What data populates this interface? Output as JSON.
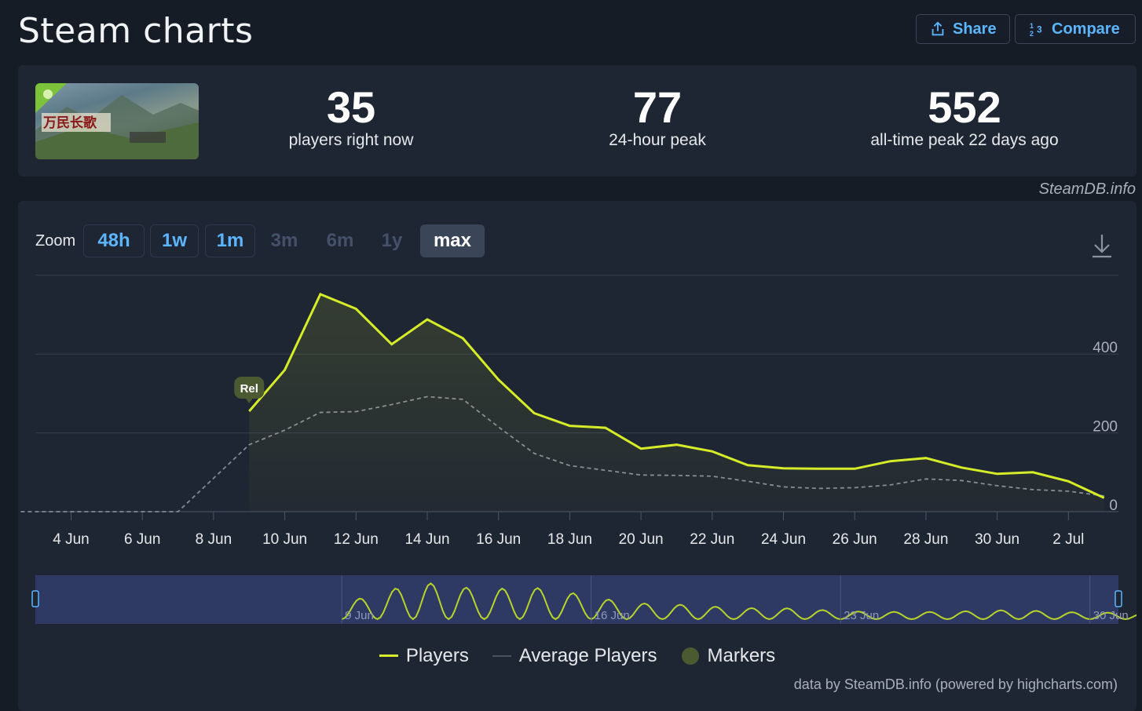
{
  "header": {
    "title": "Steam charts",
    "share_label": "Share",
    "compare_label": "Compare"
  },
  "stats": [
    {
      "value": "35",
      "label": "players right now"
    },
    {
      "value": "77",
      "label": "24-hour peak"
    },
    {
      "value": "552",
      "label": "all-time peak 22 days ago"
    }
  ],
  "thumbnail": {
    "caption": "万民长歌：三国"
  },
  "credit": "SteamDB.info",
  "zoom": {
    "label": "Zoom",
    "buttons": [
      "48h",
      "1w",
      "1m",
      "3m",
      "6m",
      "1y",
      "max"
    ],
    "active": "max",
    "disabled": [
      "3m",
      "6m",
      "1y"
    ]
  },
  "colors": {
    "players": "#d6ec28",
    "average": "#848a94",
    "accent": "#5cb5ff",
    "marker": "#4c5a32"
  },
  "legend": {
    "players": "Players",
    "average": "Average Players",
    "markers": "Markers"
  },
  "footer": "data by SteamDB.info (powered by highcharts.com)",
  "chart_data": {
    "type": "line",
    "x_tick_labels": [
      "4 Jun",
      "6 Jun",
      "8 Jun",
      "10 Jun",
      "12 Jun",
      "14 Jun",
      "16 Jun",
      "18 Jun",
      "20 Jun",
      "22 Jun",
      "24 Jun",
      "26 Jun",
      "28 Jun",
      "30 Jun",
      "2 Jul"
    ],
    "y_tick_labels": [
      "0",
      "200",
      "400"
    ],
    "ylim": [
      0,
      600
    ],
    "grid": true,
    "legend_position": "bottom",
    "marker": {
      "label": "Rel",
      "x": "2025-06-09"
    },
    "series": [
      {
        "name": "Players",
        "points": [
          [
            "2025-06-09",
            255
          ],
          [
            "2025-06-10",
            360
          ],
          [
            "2025-06-11",
            552
          ],
          [
            "2025-06-12",
            515
          ],
          [
            "2025-06-13",
            425
          ],
          [
            "2025-06-14",
            488
          ],
          [
            "2025-06-15",
            440
          ],
          [
            "2025-06-16",
            335
          ],
          [
            "2025-06-17",
            250
          ],
          [
            "2025-06-18",
            218
          ],
          [
            "2025-06-19",
            213
          ],
          [
            "2025-06-20",
            160
          ],
          [
            "2025-06-21",
            170
          ],
          [
            "2025-06-22",
            153
          ],
          [
            "2025-06-23",
            118
          ],
          [
            "2025-06-24",
            110
          ],
          [
            "2025-06-25",
            109
          ],
          [
            "2025-06-26",
            109
          ],
          [
            "2025-06-27",
            128
          ],
          [
            "2025-06-28",
            136
          ],
          [
            "2025-06-29",
            112
          ],
          [
            "2025-06-30",
            96
          ],
          [
            "2025-07-01",
            100
          ],
          [
            "2025-07-02",
            77
          ],
          [
            "2025-07-03",
            35
          ]
        ]
      },
      {
        "name": "Average Players",
        "points": [
          [
            "2025-06-01",
            0
          ],
          [
            "2025-06-07",
            0
          ],
          [
            "2025-06-09",
            170
          ],
          [
            "2025-06-10",
            207
          ],
          [
            "2025-06-11",
            252
          ],
          [
            "2025-06-12",
            254
          ],
          [
            "2025-06-13",
            272
          ],
          [
            "2025-06-14",
            292
          ],
          [
            "2025-06-15",
            285
          ],
          [
            "2025-06-16",
            215
          ],
          [
            "2025-06-17",
            148
          ],
          [
            "2025-06-18",
            117
          ],
          [
            "2025-06-19",
            105
          ],
          [
            "2025-06-20",
            93
          ],
          [
            "2025-06-21",
            92
          ],
          [
            "2025-06-22",
            90
          ],
          [
            "2025-06-23",
            77
          ],
          [
            "2025-06-24",
            63
          ],
          [
            "2025-06-25",
            59
          ],
          [
            "2025-06-26",
            61
          ],
          [
            "2025-06-27",
            68
          ],
          [
            "2025-06-28",
            83
          ],
          [
            "2025-06-29",
            79
          ],
          [
            "2025-06-30",
            66
          ],
          [
            "2025-07-01",
            56
          ],
          [
            "2025-07-02",
            52
          ],
          [
            "2025-07-03",
            40
          ]
        ]
      }
    ],
    "navigator": {
      "x_tick_labels": [
        "9 Jun",
        "16 Jun",
        "23 Jun",
        "30 Jun"
      ]
    }
  }
}
